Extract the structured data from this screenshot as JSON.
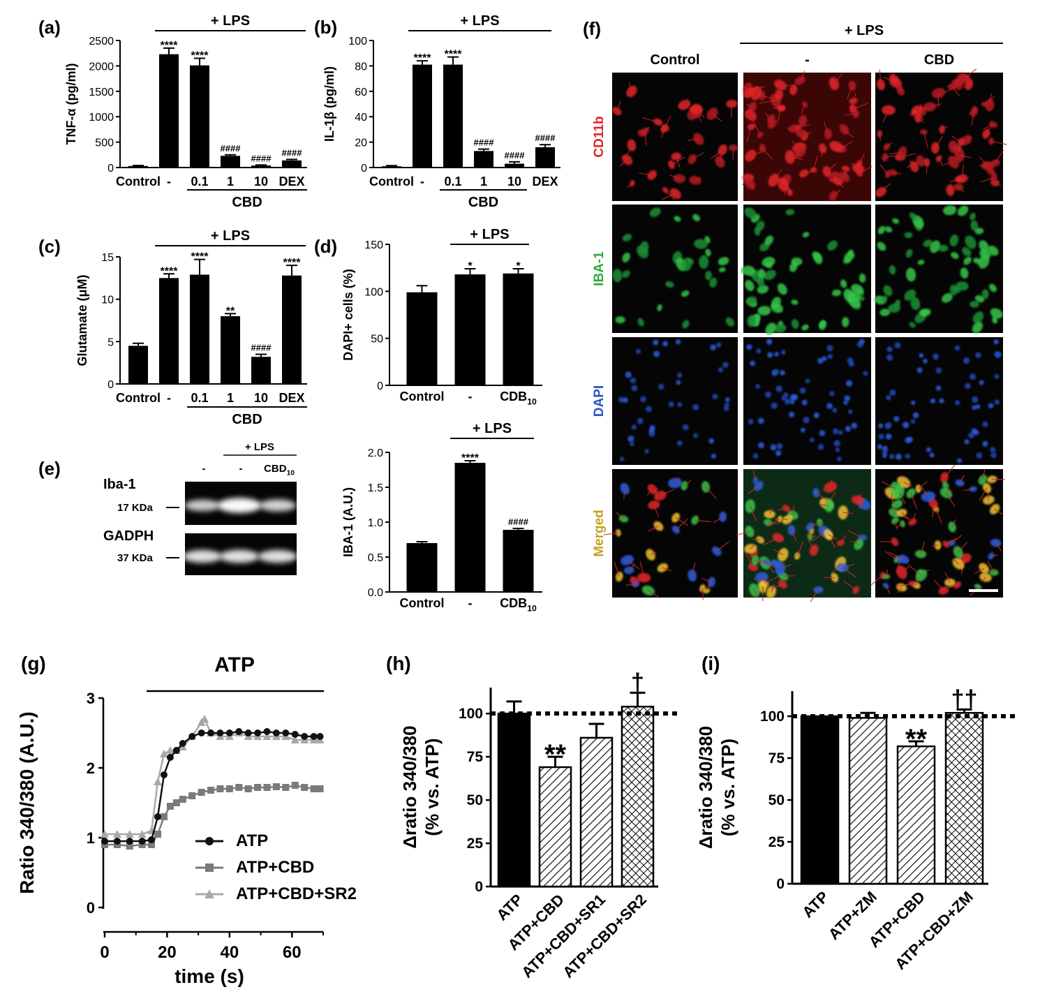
{
  "chart_data": [
    {
      "panel": "(a)",
      "type": "bar",
      "categories": [
        "Control",
        "-",
        "0.1",
        "1",
        "10",
        "DEX"
      ],
      "values": [
        30,
        2230,
        2010,
        230,
        40,
        140
      ],
      "errors": [
        10,
        120,
        140,
        20,
        10,
        20
      ],
      "annotations": [
        "",
        "****",
        "****",
        "####",
        "####",
        "####"
      ],
      "ylabel": "TNF-α (pg/ml)",
      "ylim": [
        0,
        2500
      ],
      "yticks": [
        "0",
        "500",
        "1000",
        "1500",
        "2000",
        "2500"
      ],
      "lps_label": "+ LPS",
      "group_label": "CBD"
    },
    {
      "panel": "(b)",
      "type": "bar",
      "categories": [
        "Control",
        "-",
        "0.1",
        "1",
        "10",
        "DEX"
      ],
      "values": [
        1,
        81,
        81,
        13,
        3,
        16
      ],
      "errors": [
        0.5,
        3,
        6,
        1.5,
        1.5,
        2
      ],
      "annotations": [
        "",
        "****",
        "****",
        "####",
        "####",
        "####"
      ],
      "ylabel": "IL-1β (pg/ml)",
      "ylim": [
        0,
        100
      ],
      "yticks": [
        "0",
        "20",
        "40",
        "60",
        "80",
        "100"
      ],
      "lps_label": "+ LPS",
      "group_label": "CBD"
    },
    {
      "panel": "(c)",
      "type": "bar",
      "categories": [
        "Control",
        "-",
        "0.1",
        "1",
        "10",
        "DEX"
      ],
      "values": [
        4.5,
        12.5,
        12.9,
        8.0,
        3.2,
        12.8
      ],
      "errors": [
        0.3,
        0.5,
        1.8,
        0.3,
        0.3,
        1.2
      ],
      "annotations": [
        "",
        "****",
        "****",
        "**",
        "####",
        "****"
      ],
      "ylabel": "Glutamate (μM)",
      "ylim": [
        0,
        15
      ],
      "yticks": [
        "0",
        "5",
        "10",
        "15"
      ],
      "lps_label": "+ LPS",
      "group_label": "CBD"
    },
    {
      "panel": "(d)",
      "type": "bar",
      "categories": [
        "Control",
        "-",
        "CDB10"
      ],
      "values": [
        99,
        118,
        119
      ],
      "errors": [
        7,
        6,
        5
      ],
      "annotations": [
        "",
        "*",
        "*"
      ],
      "ylabel": "DAPI+ cells (%)",
      "ylim": [
        0,
        150
      ],
      "yticks": [
        "0",
        "50",
        "100",
        "150"
      ],
      "lps_label": "+ LPS"
    },
    {
      "panel": "(e)",
      "type": "bar",
      "categories": [
        "Control",
        "-",
        "CDB10"
      ],
      "values": [
        0.7,
        1.85,
        0.89
      ],
      "errors": [
        0.02,
        0.03,
        0.02
      ],
      "annotations": [
        "",
        "****",
        "####"
      ],
      "ylabel": "IBA-1 (A.U.)",
      "ylim": [
        0,
        2.0
      ],
      "yticks": [
        "0.0",
        "0.5",
        "1.0",
        "1.5",
        "2.0"
      ],
      "lps_label": "+ LPS"
    },
    {
      "panel": "(g)",
      "type": "line",
      "title": "ATP",
      "xlabel": "time (s)",
      "ylabel": "Ratio 340/380 (A.U.)",
      "xlim": [
        0,
        70
      ],
      "ylim": [
        0,
        3
      ],
      "xticks": [
        "0",
        "20",
        "40",
        "60"
      ],
      "yticks": [
        "0",
        "1",
        "2",
        "3"
      ],
      "series": [
        {
          "name": "ATP",
          "color": "#111111",
          "marker": "circle",
          "x": [
            0,
            4,
            8,
            12,
            15,
            17,
            19,
            21,
            23,
            25,
            28,
            31,
            34,
            37,
            40,
            43,
            46,
            49,
            52,
            55,
            58,
            61,
            64,
            67,
            69
          ],
          "y": [
            0.95,
            0.95,
            0.95,
            0.95,
            0.97,
            1.3,
            1.9,
            2.15,
            2.25,
            2.35,
            2.45,
            2.5,
            2.5,
            2.5,
            2.5,
            2.52,
            2.5,
            2.5,
            2.52,
            2.5,
            2.5,
            2.48,
            2.45,
            2.45,
            2.45
          ]
        },
        {
          "name": "ATP+CBD",
          "color": "#7a7a7a",
          "marker": "square",
          "x": [
            0,
            4,
            8,
            12,
            15,
            17,
            19,
            21,
            23,
            25,
            28,
            31,
            34,
            37,
            40,
            43,
            46,
            49,
            52,
            55,
            58,
            61,
            64,
            67,
            69
          ],
          "y": [
            0.9,
            0.9,
            0.88,
            0.9,
            0.9,
            1.05,
            1.3,
            1.45,
            1.5,
            1.55,
            1.6,
            1.65,
            1.68,
            1.7,
            1.7,
            1.72,
            1.7,
            1.72,
            1.72,
            1.73,
            1.72,
            1.75,
            1.72,
            1.7,
            1.7
          ]
        },
        {
          "name": "ATP+CBD+SR2",
          "color": "#a8a8a8",
          "marker": "triangle",
          "x": [
            0,
            4,
            8,
            12,
            15,
            17,
            19,
            21,
            23,
            25,
            28,
            31,
            32,
            34,
            37,
            40,
            43,
            46,
            49,
            52,
            55,
            58,
            61,
            64,
            67,
            69
          ],
          "y": [
            1.05,
            1.05,
            1.05,
            1.05,
            1.1,
            1.8,
            2.2,
            2.25,
            2.25,
            2.3,
            2.45,
            2.65,
            2.7,
            2.5,
            2.45,
            2.45,
            2.5,
            2.45,
            2.45,
            2.45,
            2.45,
            2.45,
            2.4,
            2.4,
            2.4,
            2.4
          ]
        }
      ]
    },
    {
      "panel": "(h)",
      "type": "bar",
      "categories": [
        "ATP",
        "ATP+CBD",
        "ATP+CBD+SR1",
        "ATP+CBD+SR2"
      ],
      "values": [
        100,
        69,
        86,
        104
      ],
      "errors": [
        7,
        6,
        8,
        8
      ],
      "annotations": [
        "",
        "**",
        "",
        "†"
      ],
      "patterns": [
        "solid",
        "hatch",
        "hatch",
        "crosshatch"
      ],
      "ylabel": "Δratio 340/380\n(% vs. ATP)",
      "ylim": [
        0,
        115
      ],
      "reference_line": 100,
      "yticks": [
        "0",
        "25",
        "50",
        "75",
        "100"
      ]
    },
    {
      "panel": "(i)",
      "type": "bar",
      "categories": [
        "ATP",
        "ATP+ZM",
        "ATP+CBD",
        "ATP+CBD+ZM"
      ],
      "values": [
        100,
        99,
        82,
        102
      ],
      "errors": [
        0.5,
        3,
        3,
        2
      ],
      "annotations": [
        "",
        "",
        "**",
        "††"
      ],
      "patterns": [
        "solid",
        "hatch",
        "hatch",
        "crosshatch"
      ],
      "ylabel": "Δratio 340/380\n(% vs. ATP)",
      "ylim": [
        0,
        115
      ],
      "reference_line": 100,
      "yticks": [
        "0",
        "25",
        "50",
        "75",
        "100"
      ]
    }
  ],
  "blot": {
    "panel": "(e)",
    "lps_label": "+ LPS",
    "lanes": [
      "-",
      "-",
      "CBD10"
    ],
    "rows": [
      {
        "protein": "Iba-1",
        "size": "17 KDa",
        "intensity": [
          0.55,
          0.95,
          0.6
        ]
      },
      {
        "protein": "GADPH",
        "size": "37 KDa",
        "intensity": [
          0.7,
          0.72,
          0.7
        ]
      }
    ]
  },
  "micro": {
    "panel": "(f)",
    "lps_label": "+ LPS",
    "columns": [
      "Control",
      "-",
      "CBD"
    ],
    "rows": [
      {
        "label": "CD11b",
        "color": "#e0242a"
      },
      {
        "label": "IBA-1",
        "color": "#2eab3a"
      },
      {
        "label": "DAPI",
        "color": "#2b52c8"
      },
      {
        "label": "Merged",
        "color": "#c8a020"
      }
    ]
  }
}
